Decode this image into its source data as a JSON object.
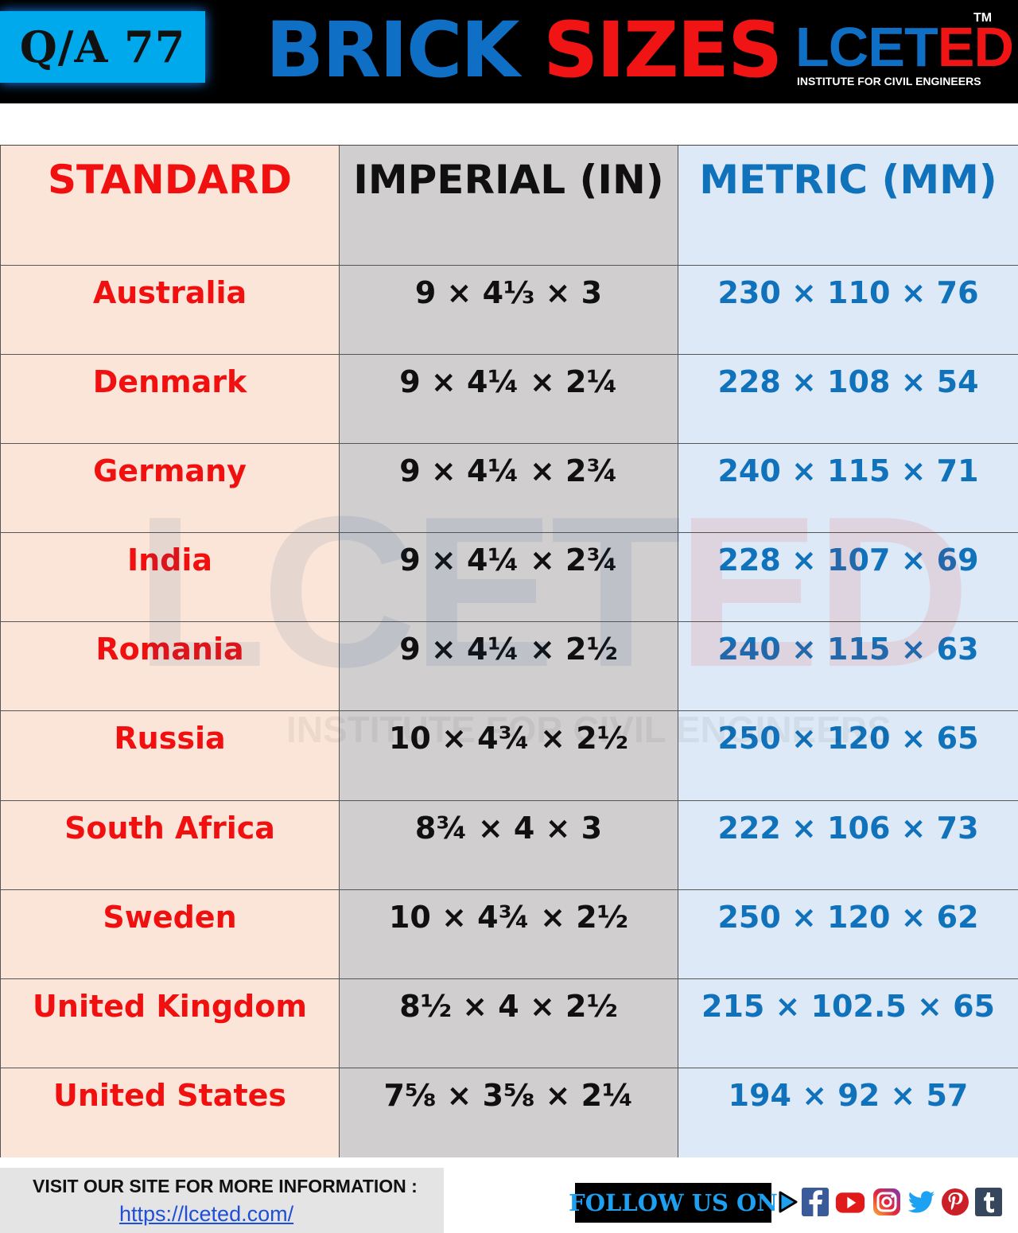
{
  "header": {
    "badge": "Q/A 77",
    "title_part1": "BRICK",
    "title_part2": "SIZES",
    "logo": {
      "part1": "LCET",
      "part2": "ED",
      "trademark": "TM",
      "tagline": "INSTITUTE FOR CIVIL ENGINEERS"
    }
  },
  "table": {
    "headers": {
      "standard": "STANDARD",
      "imperial": "IMPERIAL (IN)",
      "metric": "METRIC (MM)"
    },
    "rows": [
      {
        "standard": "Australia",
        "imperial": "9 × 4⅓ × 3",
        "metric": "230 × 110 × 76"
      },
      {
        "standard": "Denmark",
        "imperial": "9 × 4¼ × 2¼",
        "metric": "228 × 108 × 54"
      },
      {
        "standard": "Germany",
        "imperial": "9 × 4¼ × 2¾",
        "metric": "240 × 115 × 71"
      },
      {
        "standard": "India",
        "imperial": "9 × 4¼ × 2¾",
        "metric": "228 × 107 × 69"
      },
      {
        "standard": "Romania",
        "imperial": "9 × 4¼ × 2½",
        "metric": "240 × 115 × 63"
      },
      {
        "standard": "Russia",
        "imperial": "10 × 4¾ × 2½",
        "metric": "250 × 120 × 65"
      },
      {
        "standard": "South Africa",
        "imperial": "8¾ × 4 × 3",
        "metric": "222 × 106 × 73"
      },
      {
        "standard": "Sweden",
        "imperial": "10 × 4¾ × 2½",
        "metric": "250 × 120 × 62"
      },
      {
        "standard": "United Kingdom",
        "imperial": "8½ × 4 × 2½",
        "metric": "215 × 102.5 × 65"
      },
      {
        "standard": "United States",
        "imperial": "7⅝ × 3⅝ × 2¼",
        "metric": "194 × 92 × 57"
      }
    ]
  },
  "watermark": {
    "part1": "LCET",
    "part2": "ED",
    "tagline": "INSTITUTE FOR CIVIL ENGINEERS"
  },
  "footer": {
    "visit_text": "VISIT OUR SITE FOR MORE INFORMATION :",
    "link": "https://lceted.com/",
    "follow_text": "FOLLOW US ON",
    "social_icons": [
      "play-arrow-icon",
      "facebook-icon",
      "youtube-icon",
      "instagram-icon",
      "twitter-icon",
      "pinterest-icon",
      "tumblr-icon"
    ]
  },
  "colors": {
    "brand_blue": "#0e6fc4",
    "brand_red": "#f01414",
    "standard_bg": "#fae5d8",
    "imperial_bg": "#d0cecf",
    "metric_bg": "#dde9f6"
  }
}
